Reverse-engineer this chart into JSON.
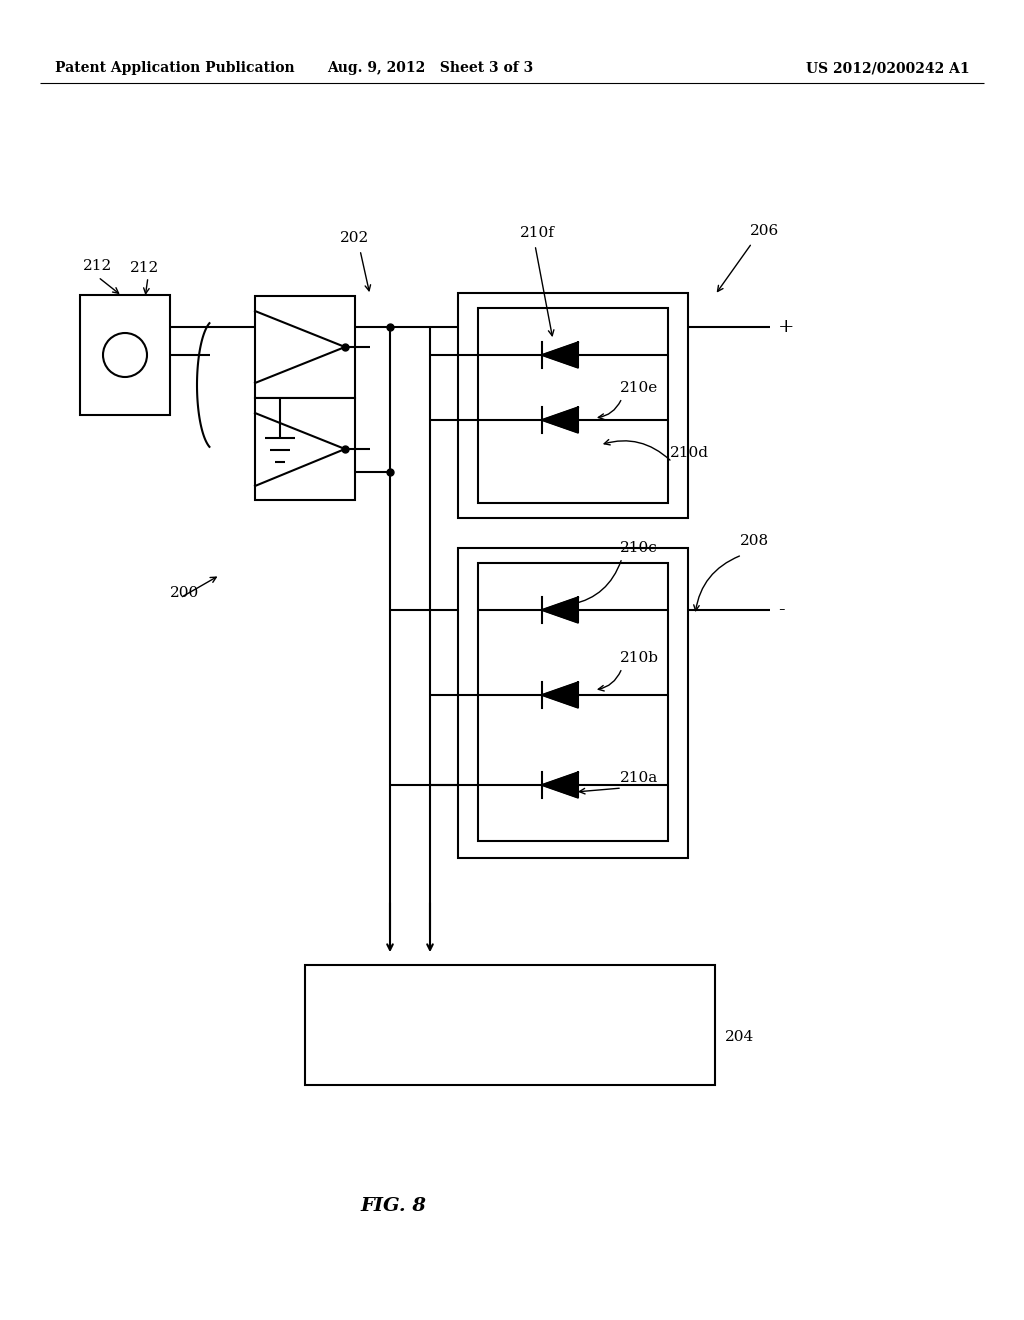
{
  "bg_color": "#ffffff",
  "header_left": "Patent Application Publication",
  "header_center": "Aug. 9, 2012   Sheet 3 of 3",
  "header_right": "US 2012/0200242 A1",
  "fig_label": "FIG. 8"
}
